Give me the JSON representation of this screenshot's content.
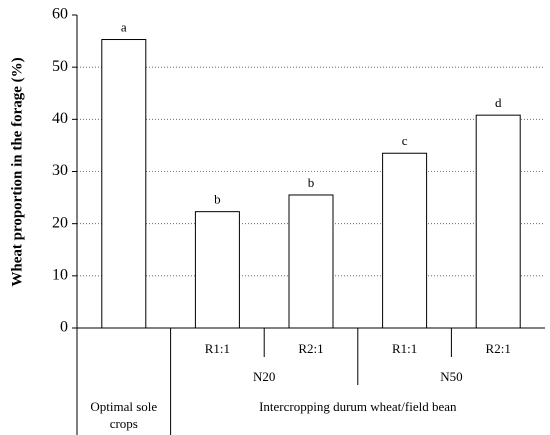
{
  "chart_data": {
    "type": "bar",
    "ylabel": "Wheat proportion in the forage (%)",
    "groups": [
      {
        "name": "Optimal sole crops",
        "categories": [
          null
        ]
      },
      {
        "name": "Intercropping durum wheat/field bean",
        "subgroups": [
          {
            "name": "N20",
            "categories": [
              "R1:1",
              "R2:1"
            ]
          },
          {
            "name": "N50",
            "categories": [
              "R1:1",
              "R2:1"
            ]
          }
        ]
      }
    ],
    "values": [
      55.3,
      22.3,
      25.5,
      33.5,
      40.8
    ],
    "annotations": [
      "a",
      "b",
      "b",
      "c",
      "d"
    ],
    "color": "#ffffff",
    "ylim": [
      0,
      60
    ],
    "yticks": [
      0,
      10,
      20,
      30,
      40,
      50,
      60
    ],
    "grid": true
  }
}
